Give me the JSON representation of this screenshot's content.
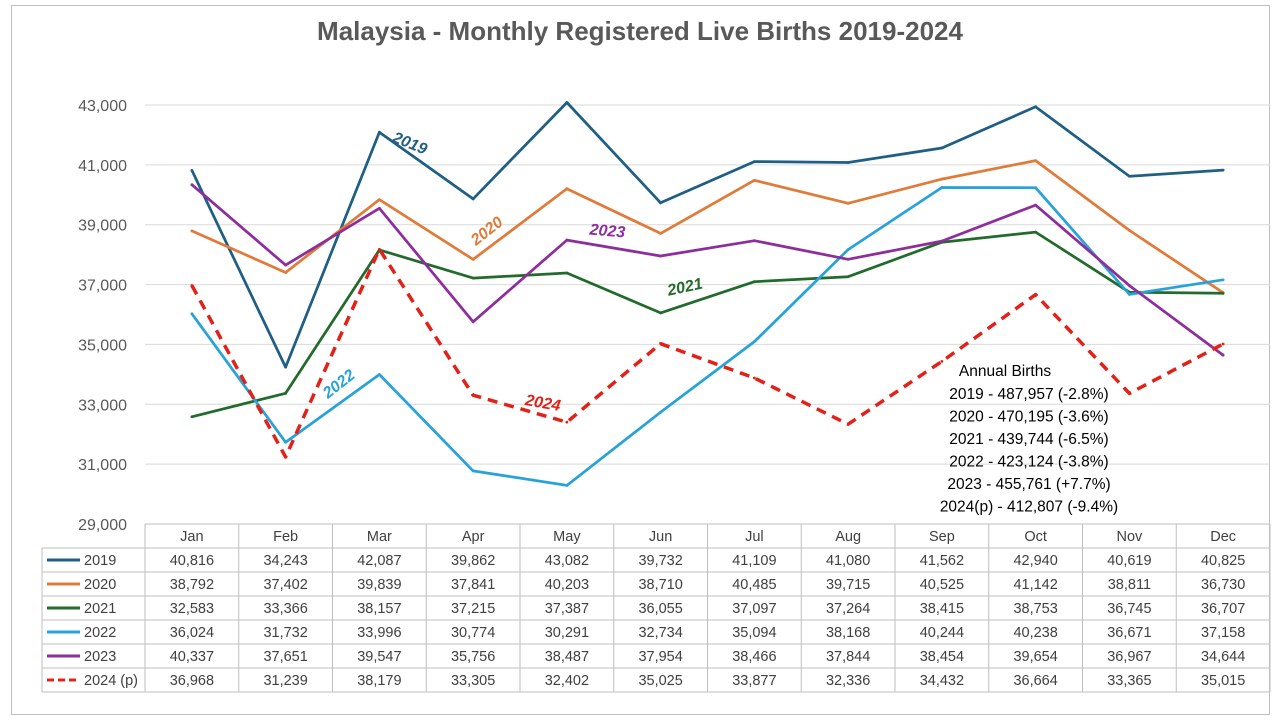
{
  "chart_data": {
    "type": "line",
    "title": "Malaysia - Monthly Registered Live Births 2019-2024",
    "categories": [
      "Jan",
      "Feb",
      "Mar",
      "Apr",
      "May",
      "Jun",
      "Jul",
      "Aug",
      "Sep",
      "Oct",
      "Nov",
      "Dec"
    ],
    "y_ticks": [
      "29,000",
      "31,000",
      "33,000",
      "35,000",
      "37,000",
      "39,000",
      "41,000",
      "43,000"
    ],
    "ylim": [
      29000,
      43000
    ],
    "grid": true,
    "series": [
      {
        "name": "2019",
        "legend": "2019",
        "color": "#1f5f84",
        "dashed": false,
        "values": [
          40816,
          34243,
          42087,
          39862,
          43082,
          39732,
          41109,
          41080,
          41562,
          42940,
          40619,
          40825
        ],
        "cells": [
          "40,816",
          "34,243",
          "42,087",
          "39,862",
          "43,082",
          "39,732",
          "41,109",
          "41,080",
          "41,562",
          "42,940",
          "40,619",
          "40,825"
        ]
      },
      {
        "name": "2020",
        "legend": "2020",
        "color": "#e07b39",
        "dashed": false,
        "values": [
          38792,
          37402,
          39839,
          37841,
          40203,
          38710,
          40485,
          39715,
          40525,
          41142,
          38811,
          36730
        ],
        "cells": [
          "38,792",
          "37,402",
          "39,839",
          "37,841",
          "40,203",
          "38,710",
          "40,485",
          "39,715",
          "40,525",
          "41,142",
          "38,811",
          "36,730"
        ]
      },
      {
        "name": "2021",
        "legend": "2021",
        "color": "#236b2c",
        "dashed": false,
        "values": [
          32583,
          33366,
          38157,
          37215,
          37387,
          36055,
          37097,
          37264,
          38415,
          38753,
          36745,
          36707
        ],
        "cells": [
          "32,583",
          "33,366",
          "38,157",
          "37,215",
          "37,387",
          "36,055",
          "37,097",
          "37,264",
          "38,415",
          "38,753",
          "36,745",
          "36,707"
        ]
      },
      {
        "name": "2022",
        "legend": "2022",
        "color": "#27a3d9",
        "dashed": false,
        "values": [
          36024,
          31732,
          33996,
          30774,
          30291,
          32734,
          35094,
          38168,
          40244,
          40238,
          36671,
          37158
        ],
        "cells": [
          "36,024",
          "31,732",
          "33,996",
          "30,774",
          "30,291",
          "32,734",
          "35,094",
          "38,168",
          "40,244",
          "40,238",
          "36,671",
          "37,158"
        ]
      },
      {
        "name": "2023",
        "legend": "2023",
        "color": "#8e2e9c",
        "dashed": false,
        "values": [
          40337,
          37651,
          39547,
          35756,
          38487,
          37954,
          38466,
          37844,
          38454,
          39654,
          36967,
          34644
        ],
        "cells": [
          "40,337",
          "37,651",
          "39,547",
          "35,756",
          "38,487",
          "37,954",
          "38,466",
          "37,844",
          "38,454",
          "39,654",
          "36,967",
          "34,644"
        ]
      },
      {
        "name": "2024",
        "legend": "2024 (p)",
        "color": "#e32119",
        "dashed": true,
        "values": [
          36968,
          31239,
          38179,
          33305,
          32402,
          35025,
          33877,
          32336,
          34432,
          36664,
          33365,
          35015
        ],
        "cells": [
          "36,968",
          "31,239",
          "38,179",
          "33,305",
          "32,402",
          "35,025",
          "33,877",
          "32,336",
          "34,432",
          "36,664",
          "33,365",
          "35,015"
        ]
      }
    ],
    "line_labels": [
      {
        "text": "2019",
        "series": 0
      },
      {
        "text": "2020",
        "series": 1
      },
      {
        "text": "2021",
        "series": 2
      },
      {
        "text": "2022",
        "series": 3
      },
      {
        "text": "2023",
        "series": 4
      },
      {
        "text": "2024",
        "series": 5
      }
    ],
    "annotation": {
      "heading": "Annual Births",
      "lines": [
        "2019 - 487,957 (-2.8%)",
        "2020 - 470,195 (-3.6%)",
        "2021 - 439,744 (-6.5%)",
        "2022 - 423,124 (-3.8%)",
        "2023 - 455,761 (+7.7%)",
        "2024(p) - 412,807 (-9.4%)"
      ]
    }
  }
}
